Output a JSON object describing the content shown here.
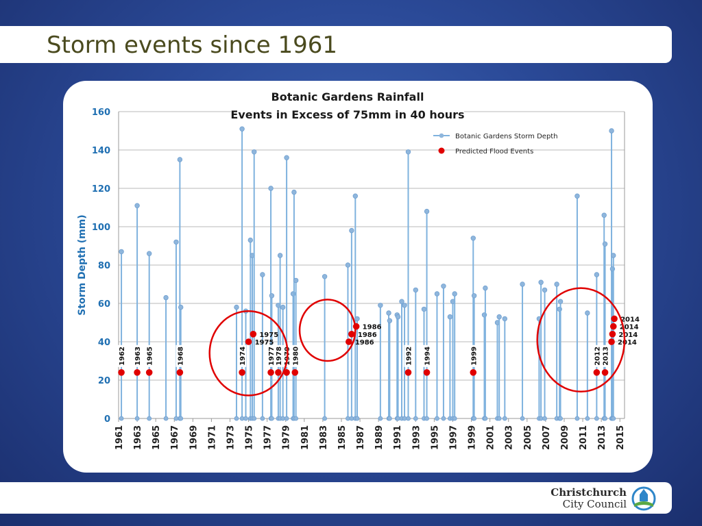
{
  "slide": {
    "title": "Storm events since 1961"
  },
  "logo": {
    "line1": "Christchurch",
    "line2": "City Council",
    "icon": "christchurch-city-council-logo"
  },
  "colors": {
    "background": "#2b4a98",
    "title_text": "#4a4a1e",
    "axis_text": "#1f6fb2",
    "series_line": "#7fb2de",
    "series_marker": "#8fb6dc",
    "flood_marker": "#e00000",
    "circle": "#e00000"
  },
  "chart_data": {
    "type": "line",
    "title": "Botanic Gardens Rainfall",
    "subtitle": "Events in Excess of 75mm in 40 hours",
    "xlabel": "",
    "ylabel": "Storm Depth (mm)",
    "ylim": [
      0,
      160
    ],
    "yticks": [
      0,
      20,
      40,
      60,
      80,
      100,
      120,
      140,
      160
    ],
    "xlim": [
      1961,
      2015.5
    ],
    "xticks": [
      "1961",
      "1963",
      "1965",
      "1967",
      "1969",
      "1971",
      "1973",
      "1975",
      "1977",
      "1979",
      "1981",
      "1983",
      "1985",
      "1987",
      "1989",
      "1991",
      "1993",
      "1995",
      "1997",
      "1999",
      "2001",
      "2003",
      "2005",
      "2007",
      "2009",
      "2011",
      "2013",
      "2015"
    ],
    "grid": true,
    "legend_position": "top-right",
    "series": [
      {
        "name": "Botanic Gardens Storm Depth",
        "style": "vertical-drop-lines",
        "points": [
          [
            1961.3,
            87
          ],
          [
            1963.0,
            111
          ],
          [
            1964.3,
            86
          ],
          [
            1966.1,
            63
          ],
          [
            1967.2,
            92
          ],
          [
            1967.6,
            135
          ],
          [
            1967.7,
            58
          ],
          [
            1973.7,
            58
          ],
          [
            1974.3,
            151
          ],
          [
            1974.7,
            56
          ],
          [
            1975.2,
            93
          ],
          [
            1975.4,
            85
          ],
          [
            1975.6,
            139
          ],
          [
            1976.5,
            75
          ],
          [
            1977.4,
            120
          ],
          [
            1977.5,
            64
          ],
          [
            1978.2,
            59
          ],
          [
            1978.4,
            85
          ],
          [
            1978.7,
            58
          ],
          [
            1979.1,
            136
          ],
          [
            1979.8,
            65
          ],
          [
            1979.9,
            118
          ],
          [
            1980.1,
            72
          ],
          [
            1983.2,
            74
          ],
          [
            1985.7,
            80
          ],
          [
            1986.1,
            98
          ],
          [
            1986.5,
            116
          ],
          [
            1986.7,
            52
          ],
          [
            1989.2,
            59
          ],
          [
            1990.1,
            55
          ],
          [
            1990.2,
            51
          ],
          [
            1991.0,
            54
          ],
          [
            1991.1,
            53
          ],
          [
            1991.5,
            61
          ],
          [
            1991.8,
            59
          ],
          [
            1992.2,
            139
          ],
          [
            1993.0,
            67
          ],
          [
            1993.9,
            57
          ],
          [
            1994.2,
            108
          ],
          [
            1995.3,
            65
          ],
          [
            1996.0,
            69
          ],
          [
            1996.7,
            53
          ],
          [
            1997.0,
            61
          ],
          [
            1997.2,
            65
          ],
          [
            1999.2,
            94
          ],
          [
            1999.3,
            64
          ],
          [
            2000.4,
            54
          ],
          [
            2000.5,
            68
          ],
          [
            2001.8,
            50
          ],
          [
            2002.0,
            53
          ],
          [
            2002.6,
            52
          ],
          [
            2004.5,
            70
          ],
          [
            2006.3,
            52
          ],
          [
            2006.5,
            71
          ],
          [
            2006.9,
            67
          ],
          [
            2008.2,
            70
          ],
          [
            2008.5,
            57
          ],
          [
            2008.6,
            61
          ],
          [
            2010.4,
            116
          ],
          [
            2011.5,
            55
          ],
          [
            2012.5,
            75
          ],
          [
            2013.3,
            106
          ],
          [
            2013.4,
            91
          ],
          [
            2014.1,
            150
          ],
          [
            2014.2,
            78
          ],
          [
            2014.3,
            85
          ]
        ]
      },
      {
        "name": "Predicted Flood Events",
        "style": "markers",
        "points": [
          [
            1961.3,
            24
          ],
          [
            1963.0,
            24
          ],
          [
            1964.3,
            24
          ],
          [
            1967.6,
            24
          ],
          [
            1974.3,
            24
          ],
          [
            1975.0,
            40
          ],
          [
            1975.5,
            44
          ],
          [
            1977.4,
            24
          ],
          [
            1978.2,
            24
          ],
          [
            1979.1,
            24
          ],
          [
            1980.0,
            24
          ],
          [
            1985.8,
            40
          ],
          [
            1986.1,
            44
          ],
          [
            1986.6,
            48
          ],
          [
            1992.2,
            24
          ],
          [
            1994.2,
            24
          ],
          [
            1999.2,
            24
          ],
          [
            2012.5,
            24
          ],
          [
            2013.4,
            24
          ],
          [
            2014.1,
            40
          ],
          [
            2014.2,
            44
          ],
          [
            2014.3,
            48
          ],
          [
            2014.4,
            52
          ]
        ]
      }
    ],
    "annotations": [
      {
        "text": "1962",
        "x": 1961.3,
        "y": 24,
        "rotate": true
      },
      {
        "text": "1963",
        "x": 1963.0,
        "y": 24,
        "rotate": true
      },
      {
        "text": "1965",
        "x": 1964.3,
        "y": 24,
        "rotate": true
      },
      {
        "text": "1968",
        "x": 1967.6,
        "y": 24,
        "rotate": true
      },
      {
        "text": "1974",
        "x": 1974.3,
        "y": 24,
        "rotate": true
      },
      {
        "text": "1977",
        "x": 1977.4,
        "y": 24,
        "rotate": true
      },
      {
        "text": "1978",
        "x": 1978.2,
        "y": 24,
        "rotate": true
      },
      {
        "text": "1979",
        "x": 1979.1,
        "y": 24,
        "rotate": true
      },
      {
        "text": "1980",
        "x": 1980.0,
        "y": 24,
        "rotate": true
      },
      {
        "text": "1992",
        "x": 1992.2,
        "y": 24,
        "rotate": true
      },
      {
        "text": "1994",
        "x": 1994.2,
        "y": 24,
        "rotate": true
      },
      {
        "text": "1999",
        "x": 1999.2,
        "y": 24,
        "rotate": true
      },
      {
        "text": "2012",
        "x": 2012.5,
        "y": 24,
        "rotate": true
      },
      {
        "text": "2013",
        "x": 2013.4,
        "y": 24,
        "rotate": true
      },
      {
        "text": "1975",
        "x": 1975.5,
        "y": 44,
        "rotate": false
      },
      {
        "text": "1975",
        "x": 1975.0,
        "y": 40,
        "rotate": false
      },
      {
        "text": "1986",
        "x": 1986.6,
        "y": 48,
        "rotate": false
      },
      {
        "text": "1986",
        "x": 1986.1,
        "y": 44,
        "rotate": false
      },
      {
        "text": "1986",
        "x": 1985.8,
        "y": 40,
        "rotate": false
      },
      {
        "text": "2014",
        "x": 2014.4,
        "y": 52,
        "rotate": false
      },
      {
        "text": "2014",
        "x": 2014.3,
        "y": 48,
        "rotate": false
      },
      {
        "text": "2014",
        "x": 2014.2,
        "y": 44,
        "rotate": false
      },
      {
        "text": "2014",
        "x": 2014.1,
        "y": 40,
        "rotate": false
      }
    ],
    "highlight_circles": [
      {
        "center": [
          1975.0,
          34
        ],
        "radius_years": 4.2,
        "radius_mm": 22
      },
      {
        "center": [
          1983.5,
          46
        ],
        "radius_years": 3.0,
        "radius_mm": 16
      },
      {
        "center": [
          2010.8,
          41
        ],
        "radius_years": 4.7,
        "radius_mm": 27
      }
    ]
  }
}
